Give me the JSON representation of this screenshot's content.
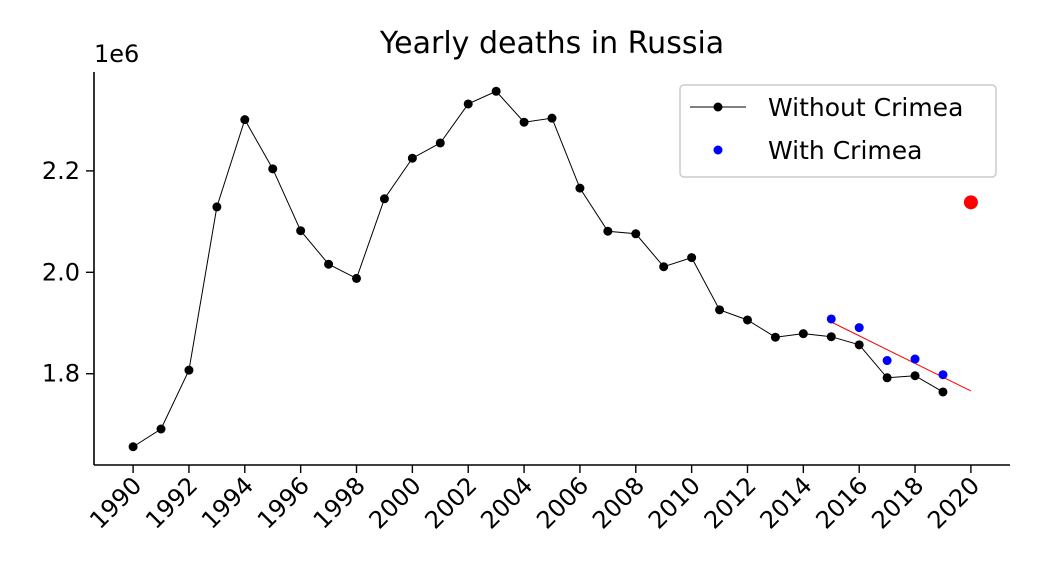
{
  "chart_data": {
    "type": "line",
    "title": "Yearly deaths in Russia",
    "xlabel": "",
    "ylabel": "",
    "y_offset_label": "1e6",
    "xlim": [
      1988.6,
      2021.4
    ],
    "ylim": [
      1.62,
      2.395
    ],
    "x_ticks": [
      1990,
      1992,
      1994,
      1996,
      1998,
      2000,
      2002,
      2004,
      2006,
      2008,
      2010,
      2012,
      2014,
      2016,
      2018,
      2020
    ],
    "y_ticks": [
      1.8,
      2.0,
      2.2
    ],
    "y_tick_labels": [
      "1.8",
      "2.0",
      "2.2"
    ],
    "legend_position": "top-right",
    "grid": false,
    "series": [
      {
        "name": "Without Crimea",
        "style": "line-with-markers",
        "color": "#000000",
        "x": [
          1990,
          1991,
          1992,
          1993,
          1994,
          1995,
          1996,
          1997,
          1998,
          1999,
          2000,
          2001,
          2002,
          2003,
          2004,
          2005,
          2006,
          2007,
          2008,
          2009,
          2010,
          2011,
          2012,
          2013,
          2014,
          2015,
          2016,
          2017,
          2018,
          2019
        ],
        "values": [
          1.656,
          1.691,
          1.807,
          2.129,
          2.301,
          2.204,
          2.082,
          2.016,
          1.988,
          2.145,
          2.225,
          2.255,
          2.332,
          2.357,
          2.296,
          2.304,
          2.166,
          2.081,
          2.076,
          2.011,
          2.029,
          1.926,
          1.906,
          1.872,
          1.879,
          1.873,
          1.857,
          1.792,
          1.796,
          1.764
        ]
      },
      {
        "name": "With Crimea",
        "style": "markers",
        "color": "#0000ff",
        "x": [
          2015,
          2016,
          2017,
          2018,
          2019
        ],
        "values": [
          1.908,
          1.891,
          1.826,
          1.829,
          1.798
        ]
      }
    ],
    "trend_line": {
      "color": "#ff0000",
      "x": [
        2015,
        2020
      ],
      "values": [
        1.902,
        1.766
      ]
    },
    "highlight_point": {
      "color": "#ff0000",
      "x": 2020,
      "value": 2.138
    }
  }
}
